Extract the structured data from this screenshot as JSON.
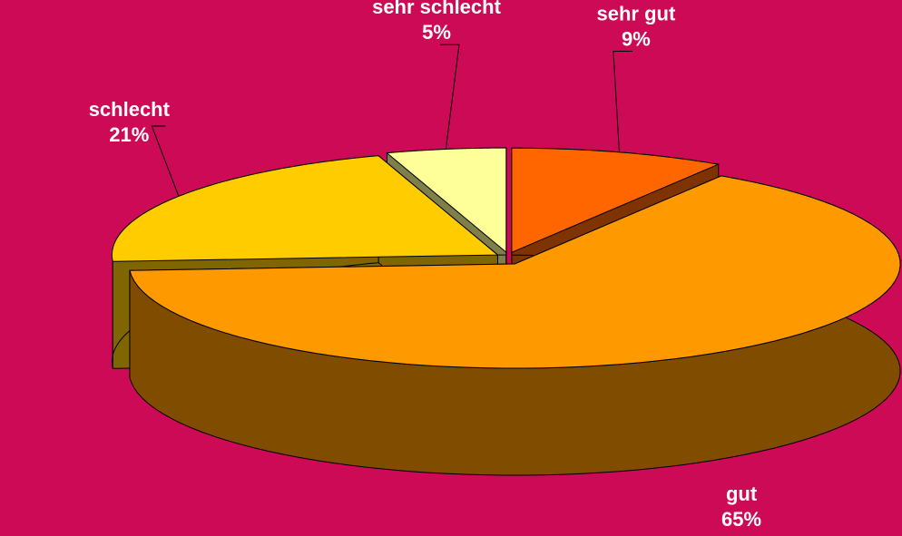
{
  "chart_data": {
    "type": "pie",
    "categories": [
      "sehr gut",
      "gut",
      "schlecht",
      "sehr schlecht"
    ],
    "values": [
      9,
      65,
      21,
      5
    ],
    "value_labels": [
      "9%",
      "65%",
      "21%",
      "5%"
    ],
    "colors": [
      "#ff6600",
      "#ff9900",
      "#ffcc00",
      "#ffff99"
    ],
    "side_colors": [
      "#7f3300",
      "#7f4c00",
      "#7f6600",
      "#7f7f4c"
    ]
  }
}
